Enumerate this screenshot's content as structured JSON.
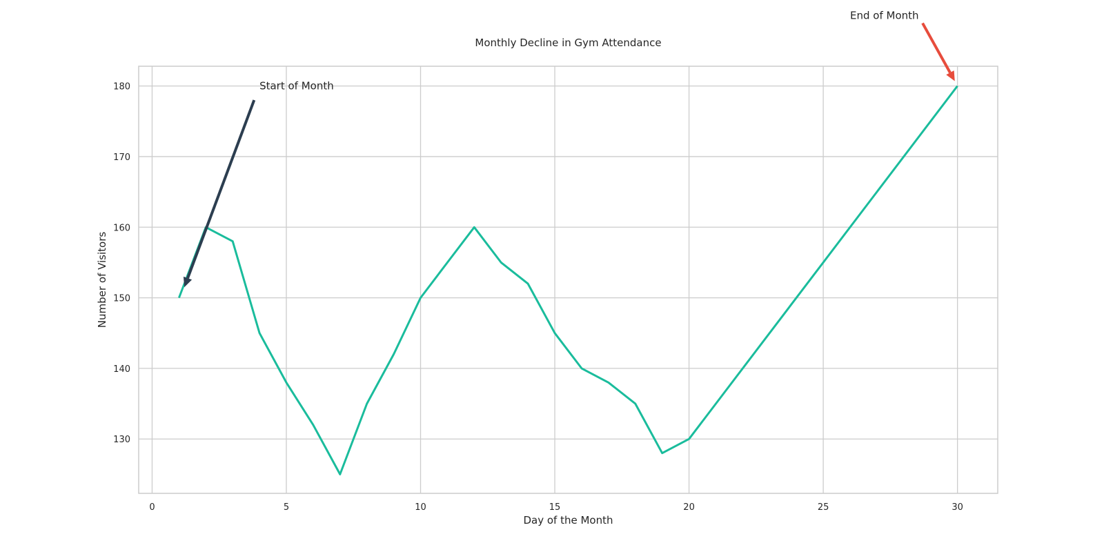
{
  "chart_data": {
    "type": "line",
    "title": "Monthly Decline in Gym Attendance",
    "xlabel": "Day of the Month",
    "ylabel": "Number of Visitors",
    "xlim": [
      -0.5,
      31.5
    ],
    "ylim": [
      122.3,
      182.8
    ],
    "xticks": [
      0,
      5,
      10,
      15,
      20,
      25,
      30
    ],
    "yticks": [
      130,
      140,
      150,
      160,
      170,
      180
    ],
    "grid": true,
    "series": [
      {
        "color": "#1abc9c",
        "x": [
          1,
          2,
          3,
          4,
          5,
          6,
          7,
          8,
          9,
          10,
          11,
          12,
          13,
          14,
          15,
          16,
          17,
          18,
          19,
          20,
          30
        ],
        "y": [
          150,
          160,
          158,
          145,
          138,
          132,
          125,
          135,
          142,
          150,
          155,
          160,
          155,
          152,
          145,
          140,
          138,
          135,
          128,
          130,
          180
        ]
      }
    ],
    "annotations": [
      {
        "text": "Start of Month",
        "point": [
          1.2,
          151.5
        ],
        "text_pos": [
          4,
          180
        ],
        "arrow_tail": [
          3.8,
          178
        ],
        "color": "#2c3e50"
      },
      {
        "text": "End of Month",
        "point": [
          29.9,
          180.7
        ],
        "text_pos": [
          26,
          190
        ],
        "arrow_tail": [
          28.7,
          188.9
        ],
        "color": "#e74c3c"
      }
    ]
  }
}
